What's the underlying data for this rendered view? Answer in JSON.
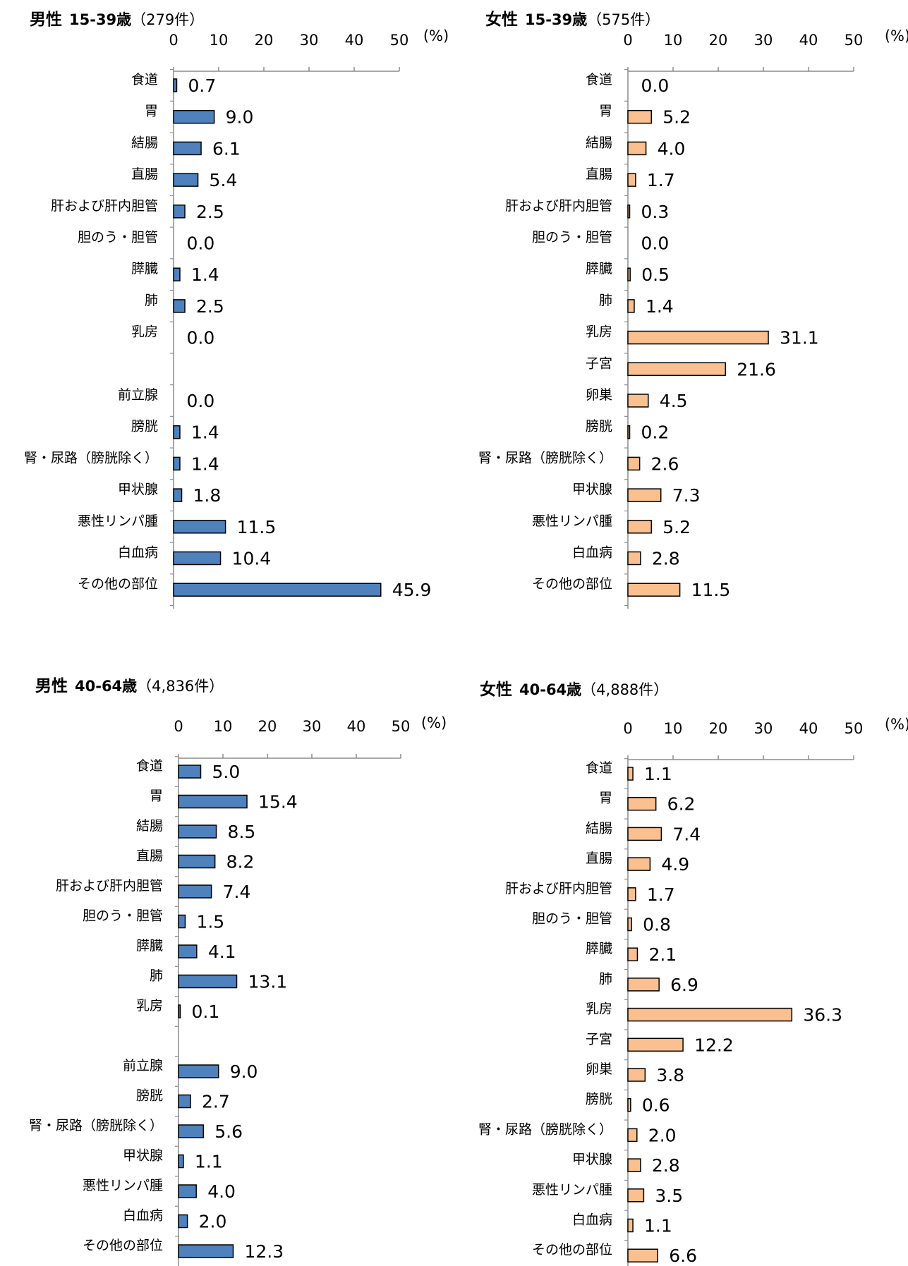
{
  "chart_data": [
    {
      "type": "bar",
      "orientation": "horizontal",
      "title": {
        "sex": "男性",
        "age": "15-39歳",
        "count": "（279件）"
      },
      "unit": "(%)",
      "ticks": [
        "0",
        "10",
        "20",
        "30",
        "40",
        "50"
      ],
      "xlim": [
        0,
        50
      ],
      "color": "#4f81bd",
      "categories": [
        "食道",
        "胃",
        "結腸",
        "直腸",
        "肝および肝内胆管",
        "胆のう・胆管",
        "膵臓",
        "肺",
        "乳房",
        "",
        "前立腺",
        "膀胱",
        "腎・尿路（膀胱除く）",
        "甲状腺",
        "悪性リンパ腫",
        "白血病",
        "その他の部位"
      ],
      "values": [
        0.7,
        9.0,
        6.1,
        5.4,
        2.5,
        0.0,
        1.4,
        2.5,
        0.0,
        null,
        0.0,
        1.4,
        1.4,
        1.8,
        11.5,
        10.4,
        45.9
      ],
      "labels": [
        "0.7",
        "9.0",
        "6.1",
        "5.4",
        "2.5",
        "0.0",
        "1.4",
        "2.5",
        "0.0",
        "",
        "0.0",
        "1.4",
        "1.4",
        "1.8",
        "11.5",
        "10.4",
        "45.9"
      ]
    },
    {
      "type": "bar",
      "orientation": "horizontal",
      "title": {
        "sex": "女性",
        "age": "15-39歳",
        "count": "（575件）"
      },
      "unit": "(%)",
      "ticks": [
        "0",
        "10",
        "20",
        "30",
        "40",
        "50"
      ],
      "xlim": [
        0,
        50
      ],
      "color": "#fac090",
      "categories": [
        "食道",
        "胃",
        "結腸",
        "直腸",
        "肝および肝内胆管",
        "胆のう・胆管",
        "膵臓",
        "肺",
        "乳房",
        "子宮",
        "卵巣",
        "膀胱",
        "腎・尿路（膀胱除く）",
        "甲状腺",
        "悪性リンパ腫",
        "白血病",
        "その他の部位"
      ],
      "values": [
        0.0,
        5.2,
        4.0,
        1.7,
        0.3,
        0.0,
        0.5,
        1.4,
        31.1,
        21.6,
        4.5,
        0.2,
        2.6,
        7.3,
        5.2,
        2.8,
        11.5
      ],
      "labels": [
        "0.0",
        "5.2",
        "4.0",
        "1.7",
        "0.3",
        "0.0",
        "0.5",
        "1.4",
        "31.1",
        "21.6",
        "4.5",
        "0.2",
        "2.6",
        "7.3",
        "5.2",
        "2.8",
        "11.5"
      ]
    },
    {
      "type": "bar",
      "orientation": "horizontal",
      "title": {
        "sex": "男性",
        "age": "40-64歳",
        "count": "（4,836件）"
      },
      "unit": "(%)",
      "ticks": [
        "0",
        "10",
        "20",
        "30",
        "40",
        "50"
      ],
      "xlim": [
        0,
        50
      ],
      "color": "#4f81bd",
      "categories": [
        "食道",
        "胃",
        "結腸",
        "直腸",
        "肝および肝内胆管",
        "胆のう・胆管",
        "膵臓",
        "肺",
        "乳房",
        "",
        "前立腺",
        "膀胱",
        "腎・尿路（膀胱除く）",
        "甲状腺",
        "悪性リンパ腫",
        "白血病",
        "その他の部位"
      ],
      "values": [
        5.0,
        15.4,
        8.5,
        8.2,
        7.4,
        1.5,
        4.1,
        13.1,
        0.1,
        null,
        9.0,
        2.7,
        5.6,
        1.1,
        4.0,
        2.0,
        12.3
      ],
      "labels": [
        "5.0",
        "15.4",
        "8.5",
        "8.2",
        "7.4",
        "1.5",
        "4.1",
        "13.1",
        "0.1",
        "",
        "9.0",
        "2.7",
        "5.6",
        "1.1",
        "4.0",
        "2.0",
        "12.3"
      ]
    },
    {
      "type": "bar",
      "orientation": "horizontal",
      "title": {
        "sex": "女性",
        "age": "40-64歳",
        "count": "（4,888件）"
      },
      "unit": "(%)",
      "ticks": [
        "0",
        "10",
        "20",
        "30",
        "40",
        "50"
      ],
      "xlim": [
        0,
        50
      ],
      "color": "#fac090",
      "categories": [
        "食道",
        "胃",
        "結腸",
        "直腸",
        "肝および肝内胆管",
        "胆のう・胆管",
        "膵臓",
        "肺",
        "乳房",
        "子宮",
        "卵巣",
        "膀胱",
        "腎・尿路（膀胱除く）",
        "甲状腺",
        "悪性リンパ腫",
        "白血病",
        "その他の部位"
      ],
      "values": [
        1.1,
        6.2,
        7.4,
        4.9,
        1.7,
        0.8,
        2.1,
        6.9,
        36.3,
        12.2,
        3.8,
        0.6,
        2.0,
        2.8,
        3.5,
        1.1,
        6.6
      ],
      "labels": [
        "1.1",
        "6.2",
        "7.4",
        "4.9",
        "1.7",
        "0.8",
        "2.1",
        "6.9",
        "36.3",
        "12.2",
        "3.8",
        "0.6",
        "2.0",
        "2.8",
        "3.5",
        "1.1",
        "6.6"
      ]
    }
  ]
}
